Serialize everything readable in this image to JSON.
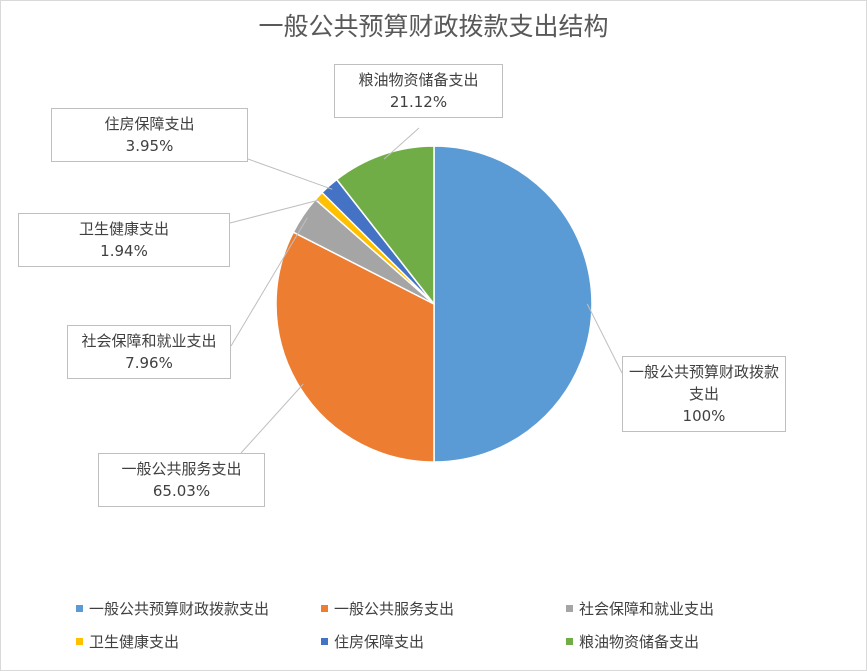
{
  "chart_data": {
    "type": "pie",
    "title": "一般公共预算财政拨款支出结构",
    "categories": [
      "一般公共预算财政拨款支出",
      "一般公共服务支出",
      "社会保障和就业支出",
      "卫生健康支出",
      "住房保障支出",
      "粮油物资储备支出"
    ],
    "values": [
      100,
      65.03,
      7.96,
      1.94,
      3.95,
      21.12
    ],
    "value_labels": [
      "100%",
      "65.03%",
      "7.96%",
      "1.94%",
      "3.95%",
      "21.12%"
    ],
    "colors": [
      "#5b9bd5",
      "#ed7d31",
      "#a5a5a5",
      "#ffc000",
      "#4472c4",
      "#70ad47"
    ],
    "legend": "bottom"
  }
}
